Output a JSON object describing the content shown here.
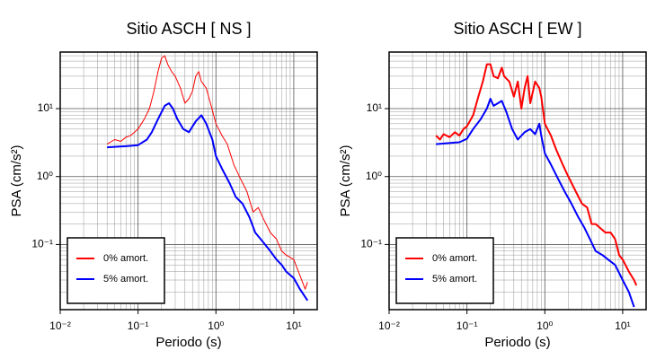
{
  "chart_data": [
    {
      "type": "line",
      "title": "Sitio ASCH [ NS ]",
      "x_label": "Periodo (s)",
      "y_label": "PSA (cm/s²)",
      "xlog": true,
      "ylog": true,
      "grid": true,
      "minor_grid": true,
      "legend": "lower left",
      "xlim": [
        0.01,
        20
      ],
      "ylim": [
        0.011,
        68
      ],
      "xticks": [
        {
          "value": 0.01,
          "label": "10⁻²"
        },
        {
          "value": 0.1,
          "label": "10⁻¹"
        },
        {
          "value": 1,
          "label": "10⁰"
        },
        {
          "value": 10,
          "label": "10¹"
        }
      ],
      "yticks": [
        {
          "value": 0.1,
          "label": "10⁻¹"
        },
        {
          "value": 1,
          "label": "10⁰"
        },
        {
          "value": 10,
          "label": "10¹"
        }
      ],
      "series": [
        {
          "name": "0% amort.",
          "color": "#ff0000",
          "width": 1,
          "x": [
            0.04,
            0.05,
            0.06,
            0.07,
            0.08,
            0.09,
            0.1,
            0.12,
            0.14,
            0.16,
            0.18,
            0.2,
            0.22,
            0.24,
            0.27,
            0.3,
            0.35,
            0.4,
            0.45,
            0.5,
            0.55,
            0.6,
            0.65,
            0.75,
            0.85,
            1.0,
            1.2,
            1.4,
            1.7,
            2.0,
            2.5,
            3.0,
            3.5,
            4.0,
            5,
            6,
            7,
            8,
            10,
            12,
            14,
            15
          ],
          "values": [
            3.0,
            3.5,
            3.3,
            3.8,
            4,
            4.5,
            5,
            7,
            10,
            18,
            35,
            55,
            60,
            45,
            35,
            30,
            20,
            12,
            14,
            18,
            30,
            35,
            25,
            20,
            12,
            6,
            4,
            3,
            1.5,
            1.0,
            0.6,
            0.3,
            0.35,
            0.25,
            0.15,
            0.12,
            0.08,
            0.07,
            0.06,
            0.035,
            0.022,
            0.028
          ]
        },
        {
          "name": "5% amort.",
          "color": "#0000ff",
          "width": 2,
          "x": [
            0.04,
            0.07,
            0.1,
            0.13,
            0.15,
            0.18,
            0.22,
            0.25,
            0.28,
            0.32,
            0.38,
            0.45,
            0.55,
            0.65,
            0.75,
            0.9,
            1.0,
            1.2,
            1.5,
            1.8,
            2.2,
            2.7,
            3.2,
            4,
            5,
            6,
            7,
            8,
            10,
            12,
            15
          ],
          "values": [
            2.7,
            2.8,
            2.9,
            3.5,
            4.5,
            7,
            11,
            12,
            10,
            7,
            5,
            4.5,
            6.5,
            8,
            6,
            3.5,
            2,
            1.3,
            0.8,
            0.5,
            0.4,
            0.25,
            0.15,
            0.11,
            0.08,
            0.06,
            0.05,
            0.04,
            0.032,
            0.022,
            0.015
          ]
        }
      ]
    },
    {
      "type": "line",
      "title": "Sitio ASCH [ EW ]",
      "x_label": "Periodo (s)",
      "y_label": "PSA (cm/s²)",
      "xlog": true,
      "ylog": true,
      "grid": true,
      "minor_grid": true,
      "legend": "lower left",
      "xlim": [
        0.01,
        20
      ],
      "ylim": [
        0.011,
        68
      ],
      "xticks": [
        {
          "value": 0.01,
          "label": "10⁻²"
        },
        {
          "value": 0.1,
          "label": "10⁻¹"
        },
        {
          "value": 1,
          "label": "10⁰"
        },
        {
          "value": 10,
          "label": "10¹"
        }
      ],
      "yticks": [
        {
          "value": 0.1,
          "label": "10⁻¹"
        },
        {
          "value": 1,
          "label": "10⁰"
        },
        {
          "value": 10,
          "label": "10¹"
        }
      ],
      "series": [
        {
          "name": "0% amort.",
          "color": "#ff0000",
          "width": 2,
          "x": [
            0.04,
            0.045,
            0.05,
            0.06,
            0.07,
            0.08,
            0.09,
            0.1,
            0.12,
            0.14,
            0.16,
            0.18,
            0.2,
            0.22,
            0.25,
            0.28,
            0.3,
            0.35,
            0.4,
            0.45,
            0.5,
            0.55,
            0.6,
            0.65,
            0.75,
            0.85,
            0.9,
            1.0,
            1.2,
            1.4,
            1.7,
            2.0,
            2.5,
            3.0,
            3.5,
            4,
            4.5,
            5,
            6,
            7,
            8,
            9,
            10,
            12,
            14,
            15
          ],
          "values": [
            4,
            3.5,
            4.2,
            3.8,
            4.5,
            4,
            5,
            5.5,
            8,
            15,
            25,
            45,
            45,
            30,
            28,
            40,
            30,
            25,
            15,
            25,
            10,
            20,
            30,
            12,
            25,
            20,
            15,
            6,
            4,
            2.5,
            1.5,
            1.0,
            0.6,
            0.4,
            0.35,
            0.2,
            0.2,
            0.18,
            0.15,
            0.15,
            0.12,
            0.07,
            0.06,
            0.04,
            0.03,
            0.025
          ]
        },
        {
          "name": "5% amort.",
          "color": "#0000ff",
          "width": 2,
          "x": [
            0.04,
            0.08,
            0.1,
            0.12,
            0.15,
            0.18,
            0.2,
            0.22,
            0.25,
            0.28,
            0.32,
            0.38,
            0.45,
            0.55,
            0.65,
            0.75,
            0.85,
            0.9,
            1.0,
            1.2,
            1.5,
            1.8,
            2.2,
            2.7,
            3.2,
            3.8,
            4.5,
            5.5,
            6.5,
            8,
            10,
            12,
            14
          ],
          "values": [
            3.0,
            3.2,
            3.6,
            5,
            7,
            10,
            14,
            11,
            12,
            13,
            9,
            5,
            3.5,
            4.5,
            5,
            4.2,
            6,
            4,
            2.2,
            1.5,
            0.9,
            0.6,
            0.4,
            0.25,
            0.18,
            0.12,
            0.08,
            0.07,
            0.06,
            0.05,
            0.03,
            0.02,
            0.012
          ]
        }
      ]
    }
  ]
}
